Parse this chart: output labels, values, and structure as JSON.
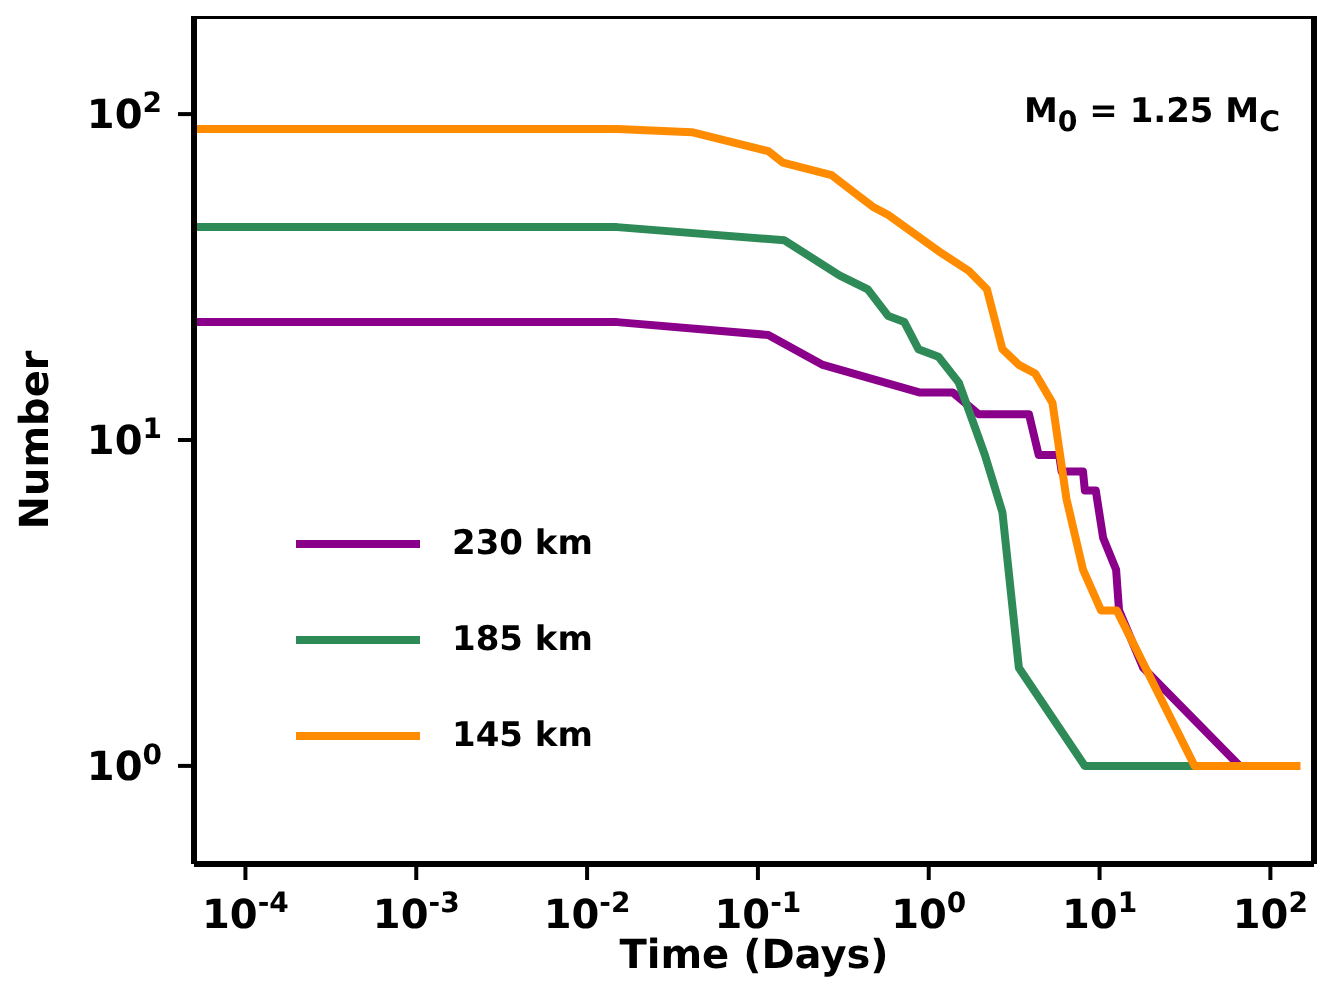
{
  "chart_data": {
    "type": "line",
    "xlabel": "Time (Days)",
    "ylabel": "Number",
    "log": "xy",
    "legend": "left",
    "marker": "none",
    "line_style": "solid",
    "annotations": [
      "M$_{0}$ = 1.25 M$_{C}$"
    ],
    "xlim": [
      5e-05,
      180
    ],
    "ylim": [
      0.5,
      200
    ],
    "xticks": [
      {
        "value": 0.0001,
        "label": "10$^{-4}$"
      },
      {
        "value": 0.001,
        "label": "10$^{-3}$"
      },
      {
        "value": 0.01,
        "label": "10$^{-2}$"
      },
      {
        "value": 0.1,
        "label": "10$^{-1}$"
      },
      {
        "value": 1,
        "label": "10$^{0}$"
      },
      {
        "value": 10,
        "label": "10$^{1}$"
      },
      {
        "value": 100,
        "label": "10$^{2}$"
      }
    ],
    "yticks": [
      {
        "value": 1,
        "label": "10$^{0}$"
      },
      {
        "value": 10,
        "label": "10$^{1}$"
      },
      {
        "value": 100,
        "label": "10$^{2}$"
      }
    ],
    "series": [
      {
        "name": "230 km",
        "color": "#8b008b",
        "x": [
          5e-05,
          0.015,
          0.115,
          0.24,
          0.88,
          1.38,
          1.96,
          3.86,
          4.4,
          5.8,
          6.0,
          8.0,
          8.2,
          9.5,
          10.5,
          12.5,
          13,
          18,
          66
        ],
        "values": [
          23,
          23,
          21,
          17,
          14,
          14,
          12,
          12,
          9,
          9,
          8,
          8,
          7,
          7,
          5,
          4,
          3,
          2,
          1
        ]
      },
      {
        "name": "185 km",
        "color": "#2e8b57",
        "x": [
          5e-05,
          0.015,
          0.143,
          0.3,
          0.44,
          0.58,
          0.72,
          0.87,
          1.14,
          1.5,
          2.13,
          2.7,
          3.37,
          8.2,
          36
        ],
        "values": [
          45,
          45,
          41,
          32,
          29,
          24,
          23,
          19,
          18,
          15,
          9,
          6,
          2,
          1,
          1
        ]
      },
      {
        "name": "145 km",
        "color": "#ff8c00",
        "x": [
          5e-05,
          0.015,
          0.041,
          0.115,
          0.14,
          0.27,
          0.39,
          0.47,
          0.58,
          1.14,
          1.72,
          2.19,
          2.7,
          3.37,
          4.2,
          5.3,
          6.4,
          8.0,
          10.2,
          12.6,
          36,
          150
        ],
        "values": [
          90,
          90,
          88,
          77,
          71,
          65,
          56,
          52,
          49,
          38,
          33,
          29,
          19,
          17,
          16,
          13,
          6.6,
          4,
          3,
          3,
          1,
          1
        ]
      }
    ]
  }
}
